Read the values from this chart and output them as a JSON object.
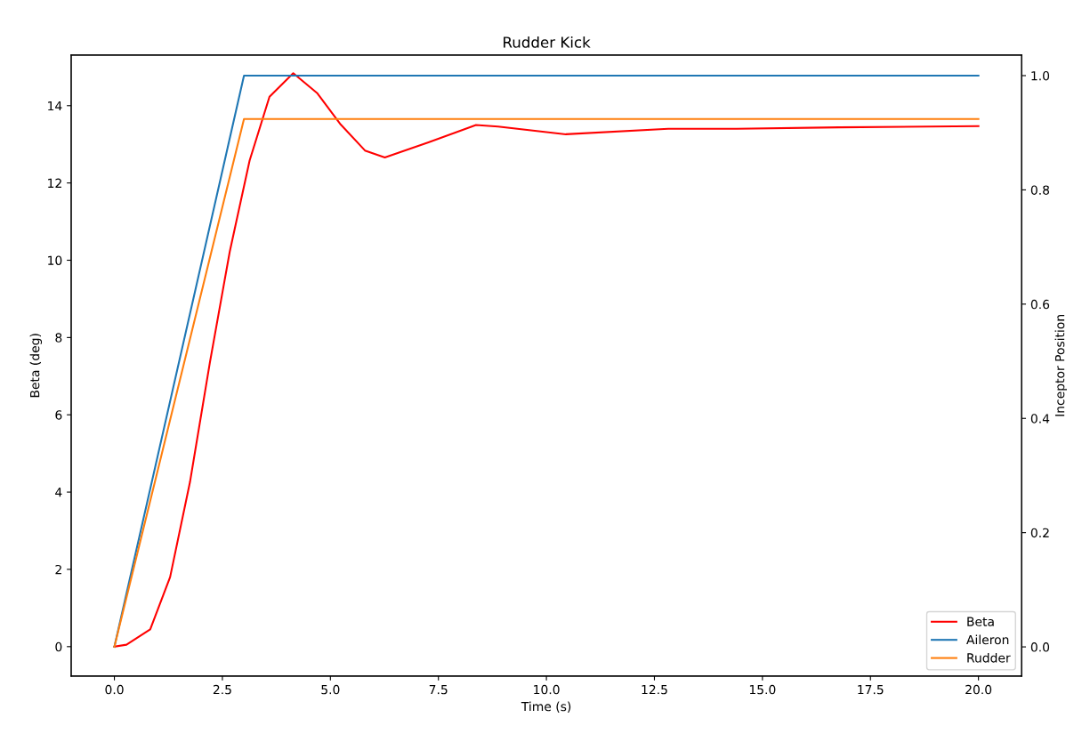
{
  "chart_data": {
    "type": "line",
    "title": "Rudder Kick",
    "xlabel": "Time (s)",
    "ylabel": "Beta (deg)",
    "y2label": "Inceptor Position",
    "series": [
      {
        "name": "Beta",
        "color": "#ff0000",
        "x": [
          0,
          0.28,
          0.83,
          1.29,
          1.75,
          2.21,
          2.67,
          3.13,
          3.59,
          4.14,
          4.69,
          5.24,
          5.8,
          6.26,
          7.27,
          8.37,
          8.88,
          10.45,
          12.82,
          14.4,
          16.77,
          20.0
        ],
        "values": [
          0,
          0.05,
          0.45,
          1.8,
          4.26,
          7.35,
          10.22,
          12.58,
          14.23,
          14.84,
          14.33,
          13.51,
          12.84,
          12.66,
          13.05,
          13.5,
          13.46,
          13.26,
          13.4,
          13.4,
          13.44,
          13.47
        ]
      },
      {
        "name": "Aileron",
        "color": "#1f77b4",
        "axis": "y2",
        "x": [
          0,
          3,
          20
        ],
        "values": [
          0,
          1.0,
          1.0
        ]
      },
      {
        "name": "Rudder",
        "color": "#ff7f0e",
        "axis": "y2",
        "x": [
          0,
          3,
          20
        ],
        "values": [
          0,
          0.924,
          0.924
        ]
      }
    ],
    "xlim": [
      -1.0,
      21.0
    ],
    "xticks": [
      {
        "value": 0,
        "label": "0.0"
      },
      {
        "value": 2.5,
        "label": "2.5"
      },
      {
        "value": 5,
        "label": "5.0"
      },
      {
        "value": 7.5,
        "label": "7.5"
      },
      {
        "value": 10,
        "label": "10.0"
      },
      {
        "value": 12.5,
        "label": "12.5"
      },
      {
        "value": 15,
        "label": "15.0"
      },
      {
        "value": 17.5,
        "label": "17.5"
      },
      {
        "value": 20,
        "label": "20.0"
      }
    ],
    "ylim": [
      -0.76,
      15.31
    ],
    "yticks": [
      0,
      2,
      4,
      6,
      8,
      10,
      12,
      14
    ],
    "y2lim": [
      -0.051,
      1.036
    ],
    "y2ticks": [
      {
        "value": 0,
        "label": "0.0"
      },
      0.2,
      0.4,
      0.6,
      0.8,
      {
        "value": 1,
        "label": "1.0"
      }
    ],
    "legend": "bottom right",
    "grid": false
  }
}
